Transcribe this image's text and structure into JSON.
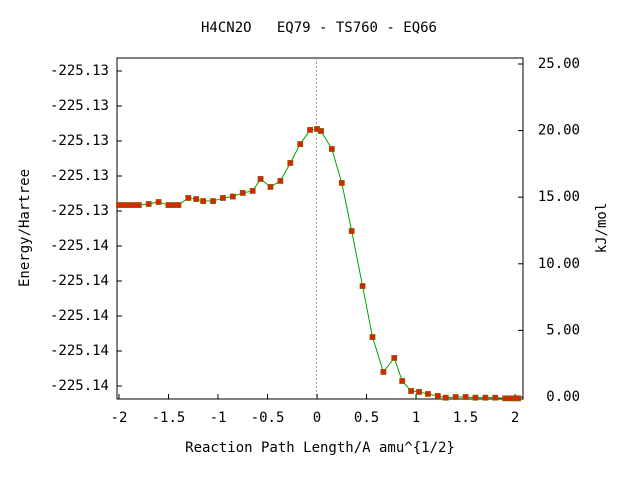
{
  "chart_data": {
    "type": "line",
    "title": "H4CN2O   EQ79 - TS760 - EQ66",
    "xlabel": "Reaction Path Length/A amu^{1/2}",
    "ylabel": "Energy/Hartree",
    "y2label": "kJ/mol",
    "xlim": [
      -2.02,
      2.08
    ],
    "xticks": [
      -2,
      -1.5,
      -1,
      -0.5,
      0,
      0.5,
      1,
      1.5,
      2
    ],
    "ylim": [
      -225.139871,
      -225.130129
    ],
    "yticks": [
      {
        "value": -225.1395,
        "label": "-225.14"
      },
      {
        "value": -225.1385,
        "label": "-225.14"
      },
      {
        "value": -225.1375,
        "label": "-225.14"
      },
      {
        "value": -225.1365,
        "label": "-225.14"
      },
      {
        "value": -225.1355,
        "label": "-225.14"
      },
      {
        "value": -225.1345,
        "label": "-225.13"
      },
      {
        "value": -225.1335,
        "label": "-225.13"
      },
      {
        "value": -225.1325,
        "label": "-225.13"
      },
      {
        "value": -225.1315,
        "label": "-225.13"
      },
      {
        "value": -225.1305,
        "label": "-225.13"
      }
    ],
    "y2lim": [
      -0.15,
      25.45
    ],
    "y2ticks": [
      {
        "value": 0,
        "label": "0.00"
      },
      {
        "value": 5,
        "label": "5.00"
      },
      {
        "value": 10,
        "label": "10.00"
      },
      {
        "value": 15,
        "label": "15.00"
      },
      {
        "value": 20,
        "label": "20.00"
      },
      {
        "value": 25,
        "label": "25.00"
      }
    ],
    "x": [
      -2.0,
      -1.95,
      -1.9,
      -1.85,
      -1.8,
      -1.7,
      -1.6,
      -1.5,
      -1.45,
      -1.4,
      -1.3,
      -1.22,
      -1.15,
      -1.05,
      -0.95,
      -0.85,
      -0.75,
      -0.65,
      -0.57,
      -0.47,
      -0.37,
      -0.27,
      -0.17,
      -0.07,
      0,
      0.04,
      0.15,
      0.25,
      0.35,
      0.46,
      0.56,
      0.67,
      0.78,
      0.86,
      0.95,
      1.03,
      1.12,
      1.22,
      1.3,
      1.4,
      1.5,
      1.6,
      1.7,
      1.8,
      1.9,
      1.95,
      2.0,
      2.03
    ],
    "series": [
      {
        "color": "#00a000",
        "marker_color": "#e02000",
        "axis": "y2",
        "values": [
          14.41,
          14.41,
          14.41,
          14.41,
          14.41,
          14.49,
          14.64,
          14.41,
          14.41,
          14.41,
          14.94,
          14.86,
          14.71,
          14.71,
          14.94,
          15.05,
          15.32,
          15.47,
          16.37,
          15.77,
          16.22,
          17.57,
          18.99,
          20.05,
          20.12,
          19.97,
          18.62,
          16.07,
          12.46,
          8.33,
          4.5,
          1.88,
          2.93,
          1.2,
          0.45,
          0.38,
          0.23,
          0.08,
          -0.05,
          0,
          0,
          -0.05,
          -0.05,
          -0.05,
          -0.1,
          -0.1,
          -0.1,
          -0.1
        ]
      }
    ]
  }
}
